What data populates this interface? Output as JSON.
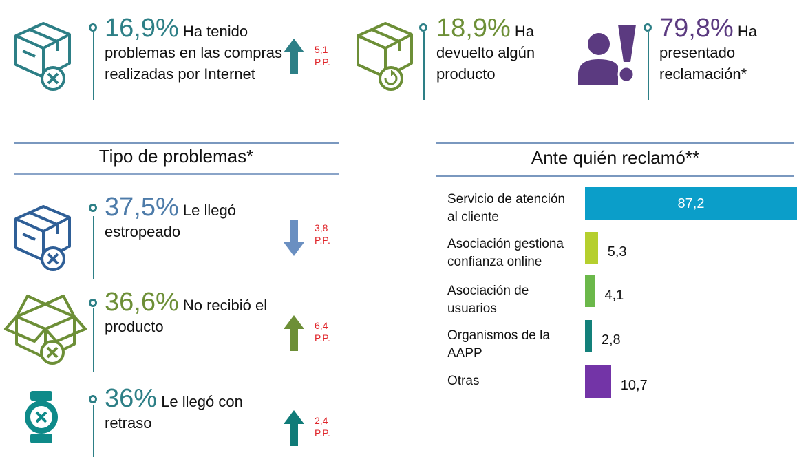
{
  "colors": {
    "teal": "#2d7f86",
    "blue_steel": "#4d7ba9",
    "olive": "#6d8f37",
    "purple": "#5b3a80",
    "red_delta": "#e0262b"
  },
  "top_stats": [
    {
      "percent": "16,9%",
      "text": "Ha tenido problemas en las compras realizadas por Internet",
      "delta": "5,1",
      "unit": "P.P.",
      "icon": "box-x-icon"
    },
    {
      "percent": "18,9%",
      "text": "Ha devuelto algún producto",
      "icon": "box-return-icon"
    },
    {
      "percent": "79,8%",
      "text": "Ha presentado reclamación*",
      "icon": "person-complaint-icon"
    }
  ],
  "problems": {
    "title": "Tipo de problemas*",
    "items": [
      {
        "percent": "37,5%",
        "text": "Le llegó estropeado",
        "delta": "3,8",
        "unit": "P.P.",
        "icon": "box-x-icon"
      },
      {
        "percent": "36,6%",
        "text": "No recibió el producto",
        "delta": "6,4",
        "unit": "P.P.",
        "icon": "open-box-x-icon"
      },
      {
        "percent": "36%",
        "text": "Le llegó con retraso",
        "delta": "2,4",
        "unit": "P.P.",
        "icon": "watch-x-icon"
      }
    ]
  },
  "chart_data": {
    "type": "bar",
    "orientation": "horizontal",
    "title": "Ante quién reclamó**",
    "categories": [
      "Servicio de atención al cliente",
      "Asociación gestiona confianza online",
      "Asociación de usuarios",
      "Organismos de la AAPP",
      "Otras"
    ],
    "values": [
      87.2,
      5.3,
      4.1,
      2.8,
      10.7
    ],
    "value_labels": [
      "87,2",
      "5,3",
      "4,1",
      "2,8",
      "10,7"
    ],
    "colors": [
      "#0b9ec9",
      "#b5cf2e",
      "#6bb84a",
      "#13807a",
      "#7334a7"
    ],
    "xlim": [
      0,
      87.2
    ]
  }
}
